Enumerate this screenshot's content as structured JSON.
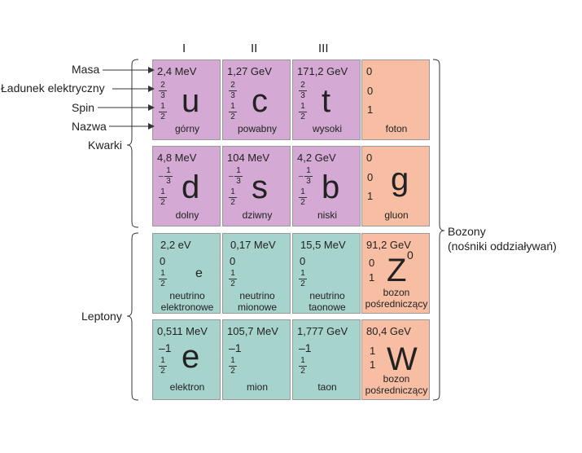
{
  "generations": [
    "I",
    "II",
    "III"
  ],
  "left_labels": {
    "masa": "Masa",
    "ladunek": "Ładunek elektryczny",
    "spin": "Spin",
    "nazwa": "Nazwa",
    "kwarki": "Kwarki",
    "leptony": "Leptony"
  },
  "right_labels": {
    "bozony_line1": "Bozony",
    "bozony_line2": "(nośniki oddziaływań)"
  },
  "colors": {
    "quark": "#d4a9d3",
    "lepton": "#a7d3cd",
    "boson": "#f8bea4",
    "border": "#999999",
    "line": "#333333"
  },
  "particles": {
    "up": {
      "mass": "2,4 MeV",
      "charge_num": "2",
      "charge_den": "3",
      "charge_neg": "",
      "spin_num": "1",
      "spin_den": "2",
      "symbol": "u",
      "name": "górny"
    },
    "charm": {
      "mass": "1,27 GeV",
      "charge_num": "2",
      "charge_den": "3",
      "charge_neg": "",
      "spin_num": "1",
      "spin_den": "2",
      "symbol": "c",
      "name": "powabny"
    },
    "top": {
      "mass": "171,2 GeV",
      "charge_num": "2",
      "charge_den": "3",
      "charge_neg": "",
      "spin_num": "1",
      "spin_den": "2",
      "symbol": "t",
      "name": "wysoki"
    },
    "photon": {
      "mass": "0",
      "charge": "0",
      "spin": "1",
      "name": "foton"
    },
    "down": {
      "mass": "4,8 MeV",
      "charge_num": "1",
      "charge_den": "3",
      "charge_neg": "–",
      "spin_num": "1",
      "spin_den": "2",
      "symbol": "d",
      "name": "dolny"
    },
    "strange": {
      "mass": "104 MeV",
      "charge_num": "1",
      "charge_den": "3",
      "charge_neg": "–",
      "spin_num": "1",
      "spin_den": "2",
      "symbol": "s",
      "name": "dziwny"
    },
    "bottom": {
      "mass": "4,2 GeV",
      "charge_num": "1",
      "charge_den": "3",
      "charge_neg": "–",
      "spin_num": "1",
      "spin_den": "2",
      "symbol": "b",
      "name": "niski"
    },
    "gluon": {
      "mass": "0",
      "charge": "0",
      "spin": "1",
      "symbol": "g",
      "name": "gluon"
    },
    "nu_e": {
      "mass": "2,2 eV",
      "charge": "0",
      "spin_num": "1",
      "spin_den": "2",
      "symbol": "e",
      "name1": "neutrino",
      "name2": "elektronowe"
    },
    "nu_mu": {
      "mass": "0,17 MeV",
      "charge": "0",
      "spin_num": "1",
      "spin_den": "2",
      "name1": "neutrino",
      "name2": "mionowe"
    },
    "nu_tau": {
      "mass": "15,5 MeV",
      "charge": "0",
      "spin_num": "1",
      "spin_den": "2",
      "name1": "neutrino",
      "name2": "taonowe"
    },
    "z": {
      "mass": "91,2 GeV",
      "charge": "0",
      "spin": "1",
      "symbol": "Z",
      "sup": "0",
      "name1": "bozon",
      "name2": "pośredniczący"
    },
    "electron": {
      "mass": "0,511 MeV",
      "charge": "–1",
      "spin_num": "1",
      "spin_den": "2",
      "symbol": "e",
      "name": "elektron"
    },
    "muon": {
      "mass": "105,7 MeV",
      "charge": "–1",
      "spin_num": "1",
      "spin_den": "2",
      "name": "mion"
    },
    "tau": {
      "mass": "1,777 GeV",
      "charge": "–1",
      "spin_num": "1",
      "spin_den": "2",
      "name": "taon"
    },
    "w": {
      "mass": "80,4 GeV",
      "charge": "1",
      "spin": "1",
      "symbol": "W",
      "name1": "bozon",
      "name2": "pośredniczący"
    }
  }
}
